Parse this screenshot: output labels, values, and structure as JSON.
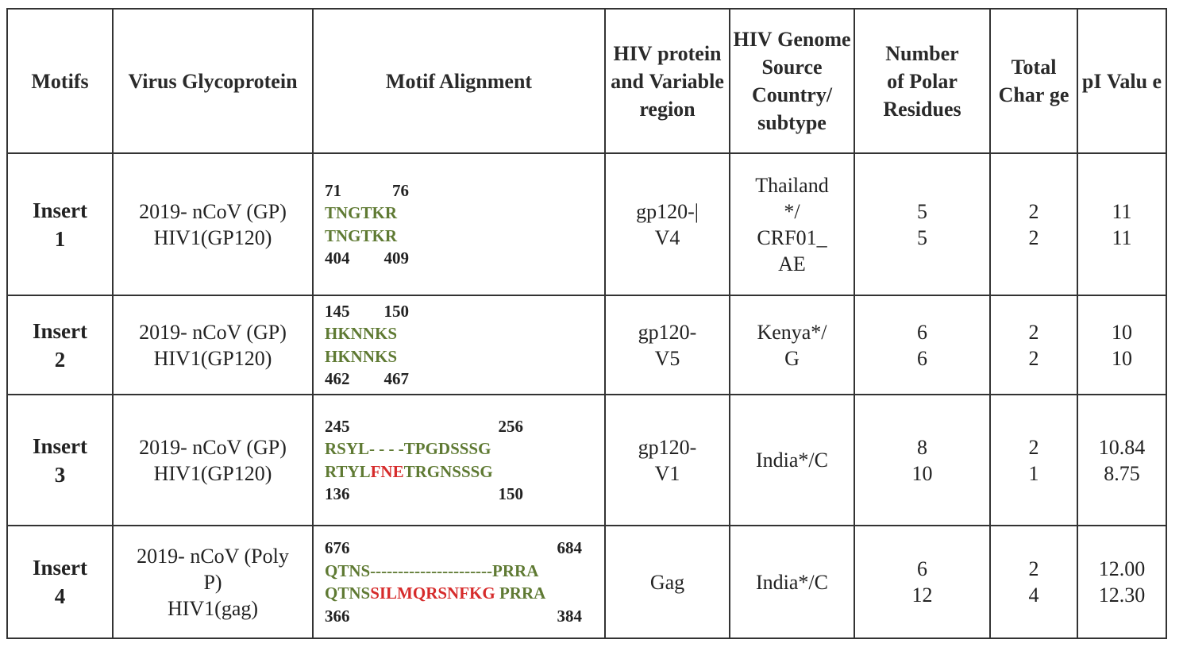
{
  "headers": {
    "motifs": "Motifs",
    "glyco_1": "Virus",
    "glyco_2": "Glycoprotein",
    "alignment": "Motif Alignment",
    "hiv_protein_1": "HIV",
    "hiv_protein_2": "protein",
    "hiv_protein_3": "and",
    "hiv_protein_4": "Variable",
    "hiv_protein_5": "region",
    "genome_1": "HIV",
    "genome_2": "Genome",
    "genome_3": "Source",
    "genome_4": "Country/",
    "genome_5": "subtype",
    "polar_1": "Number",
    "polar_2": "of Polar",
    "polar_3": "Residues",
    "charge_1": "Total",
    "charge_2": "Char",
    "charge_3": "ge",
    "pi_1": "pI",
    "pi_2": "Valu",
    "pi_3": "e"
  },
  "rows": [
    {
      "motif_1": "Insert",
      "motif_2": "1",
      "glyco_1": "2019- nCoV (GP)",
      "glyco_2": "HIV1(GP120)",
      "glyco_3": "",
      "top_start": "71",
      "top_end": "76",
      "seq1": "TNGTKR",
      "seq1_ins": "",
      "seq1_tail": "",
      "seq2": "TNGTKR",
      "seq2_ins": "",
      "seq2_tail": "",
      "bot_start": "404",
      "bot_end": "409",
      "hiv_1": "gp120-|",
      "hiv_2": "V4",
      "genome_1": "Thailand",
      "genome_2": "*/",
      "genome_3": "CRF01_",
      "genome_4": "AE",
      "polar_1": "5",
      "polar_2": "5",
      "charge_1": "2",
      "charge_2": "2",
      "pi_1": "11",
      "pi_2": "11"
    },
    {
      "motif_1": "Insert",
      "motif_2": "2",
      "glyco_1": "2019- nCoV (GP)",
      "glyco_2": "HIV1(GP120)",
      "glyco_3": "",
      "top_start": "145",
      "top_end": "150",
      "seq1": "HKNNKS",
      "seq1_ins": "",
      "seq1_tail": "",
      "seq2": "HKNNKS",
      "seq2_ins": "",
      "seq2_tail": "",
      "bot_start": "462",
      "bot_end": "467",
      "hiv_1": "gp120-",
      "hiv_2": "V5",
      "genome_1": "Kenya*/",
      "genome_2": "G",
      "polar_1": "6",
      "polar_2": "6",
      "charge_1": "2",
      "charge_2": "2",
      "pi_1": "10",
      "pi_2": "10"
    },
    {
      "motif_1": "Insert",
      "motif_2": "3",
      "glyco_1": "2019- nCoV (GP)",
      "glyco_2": "HIV1(GP120)",
      "glyco_3": "",
      "top_start": "245",
      "top_end": "256",
      "seq1": "RSYL- - - -TPGDSSSG",
      "seq1_ins": "",
      "seq1_tail": "",
      "seq2": "RTYL",
      "seq2_ins": "FNE",
      "seq2_tail": "TRGNSSSG",
      "bot_start": "136",
      "bot_end": "150",
      "hiv_1": "gp120-",
      "hiv_2": "V1",
      "genome_1": "India*/C",
      "polar_1": "8",
      "polar_2": "10",
      "charge_1": "2",
      "charge_2": "1",
      "pi_1": "10.84",
      "pi_2": "8.75"
    },
    {
      "motif_1": "Insert",
      "motif_2": "4",
      "glyco_1": "2019- nCoV (Poly",
      "glyco_2": "P)",
      "glyco_3": "HIV1(gag)",
      "top_start": "676",
      "top_end": "684",
      "seq1": "QTNS----------------------PRRA",
      "seq1_ins": "",
      "seq1_tail": "",
      "seq2": "QTNS",
      "seq2_ins": "SILMQRSNFKG",
      "seq2_tail": " PRRA",
      "bot_start": "366",
      "bot_end": "384",
      "hiv_1": "Gag",
      "hiv_2": "",
      "genome_1": "India*/C",
      "polar_1": "6",
      "polar_2": "12",
      "charge_1": "2",
      "charge_2": "4",
      "pi_1": "12.00",
      "pi_2": "12.30"
    }
  ]
}
